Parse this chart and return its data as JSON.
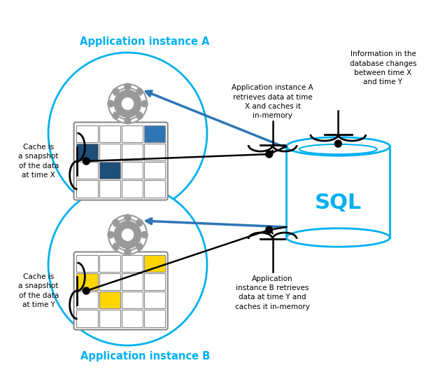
{
  "bg_color": "#ffffff",
  "cyan": "#00b0f0",
  "blue": "#2e75b6",
  "black": "#000000",
  "yellow": "#ffd700",
  "dark_blue_cell": "#1f4e79",
  "mid_blue_cell": "#2e75b6",
  "gray_gear": "#999999",
  "app_a_label": "Application instance A",
  "app_b_label": "Application instance B",
  "cache_a_label": "Cache is\na snapshot\nof the data\nat time X",
  "cache_b_label": "Cache is\na snapshot\nof the data\nat time Y",
  "ann_a": "Application instance A\nretrieves data at time\nX and caches it\nin-memory",
  "ann_b": "Application\ninstance B retrieves\ndata at time Y and\ncaches it in-memory",
  "ann_sql": "Information in the\ndatabase changes\nbetween time X\nand time Y",
  "sql_label": "SQL"
}
